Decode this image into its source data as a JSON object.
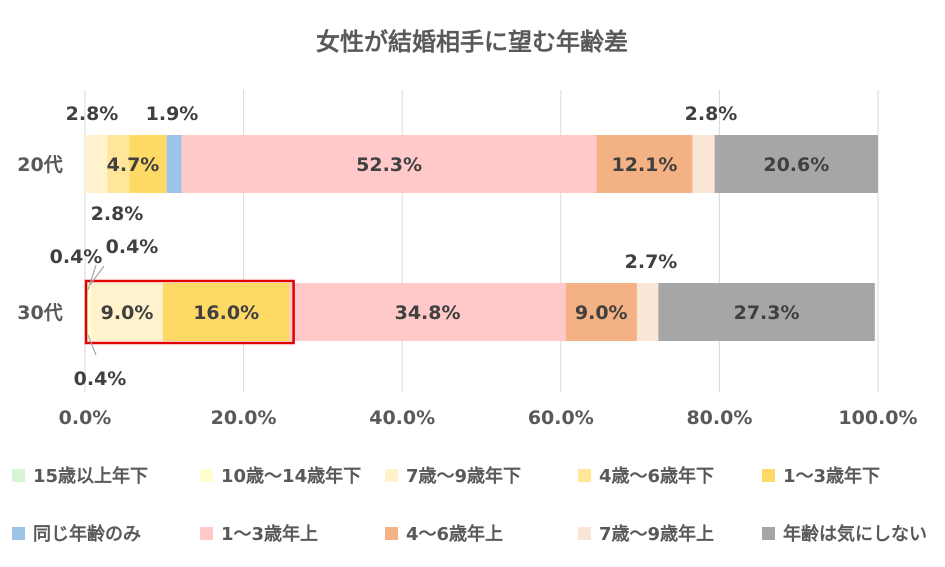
{
  "chart_data": {
    "type": "bar",
    "orientation": "horizontal",
    "stacked": true,
    "title": "女性が結婚相手に望む年齢差",
    "categories": [
      "20代",
      "30代"
    ],
    "xlim": [
      0,
      100
    ],
    "x_ticks": [
      "0.0%",
      "20.0%",
      "40.0%",
      "60.0%",
      "80.0%",
      "100.0%"
    ],
    "grid": "vertical",
    "legend_position": "bottom",
    "series": [
      {
        "name": "15歳以上年下",
        "color": "#d5f5d5",
        "values": [
          0.0,
          0.4
        ],
        "labels": [
          "",
          ""
        ]
      },
      {
        "name": "10歳～14歳年下",
        "color": "#ffffd0",
        "values": [
          0.0,
          0.4
        ],
        "labels": [
          "",
          ""
        ]
      },
      {
        "name": "7歳～9歳年下",
        "color": "#fff2cc",
        "values": [
          2.8,
          9.0
        ],
        "labels": [
          "2.8%",
          "9.0%"
        ]
      },
      {
        "name": "4歳～6歳年下",
        "color": "#ffe699",
        "values": [
          2.8,
          0.0
        ],
        "labels": [
          "2.8%",
          ""
        ]
      },
      {
        "name": "1～3歳年下",
        "color": "#ffd966",
        "values": [
          4.7,
          16.0
        ],
        "labels": [
          "4.7%",
          "16.0%"
        ]
      },
      {
        "name": "同じ年齢のみ",
        "color": "#9dc3e6",
        "values": [
          1.9,
          0.0
        ],
        "labels": [
          "1.9%",
          ""
        ]
      },
      {
        "name": "1～3歳年上",
        "color": "#ffc9c9",
        "values": [
          52.3,
          34.8
        ],
        "labels": [
          "52.3%",
          "34.8%"
        ]
      },
      {
        "name": "4～6歳年上",
        "color": "#f4b183",
        "values": [
          12.1,
          9.0
        ],
        "labels": [
          "12.1%",
          "9.0%"
        ]
      },
      {
        "name": "7歳～9歳年上",
        "color": "#fbe5d6",
        "values": [
          2.8,
          2.7
        ],
        "labels": [
          "2.8%",
          "2.7%"
        ]
      },
      {
        "name": "年齢は気にしない",
        "color": "#a6a6a6",
        "values": [
          20.6,
          27.3
        ],
        "labels": [
          "20.6%",
          "27.3%"
        ]
      }
    ],
    "highlight": {
      "category": "30代",
      "series": [
        "7歳～9歳年下",
        "1～3歳年下"
      ],
      "color": "#e00000"
    }
  }
}
